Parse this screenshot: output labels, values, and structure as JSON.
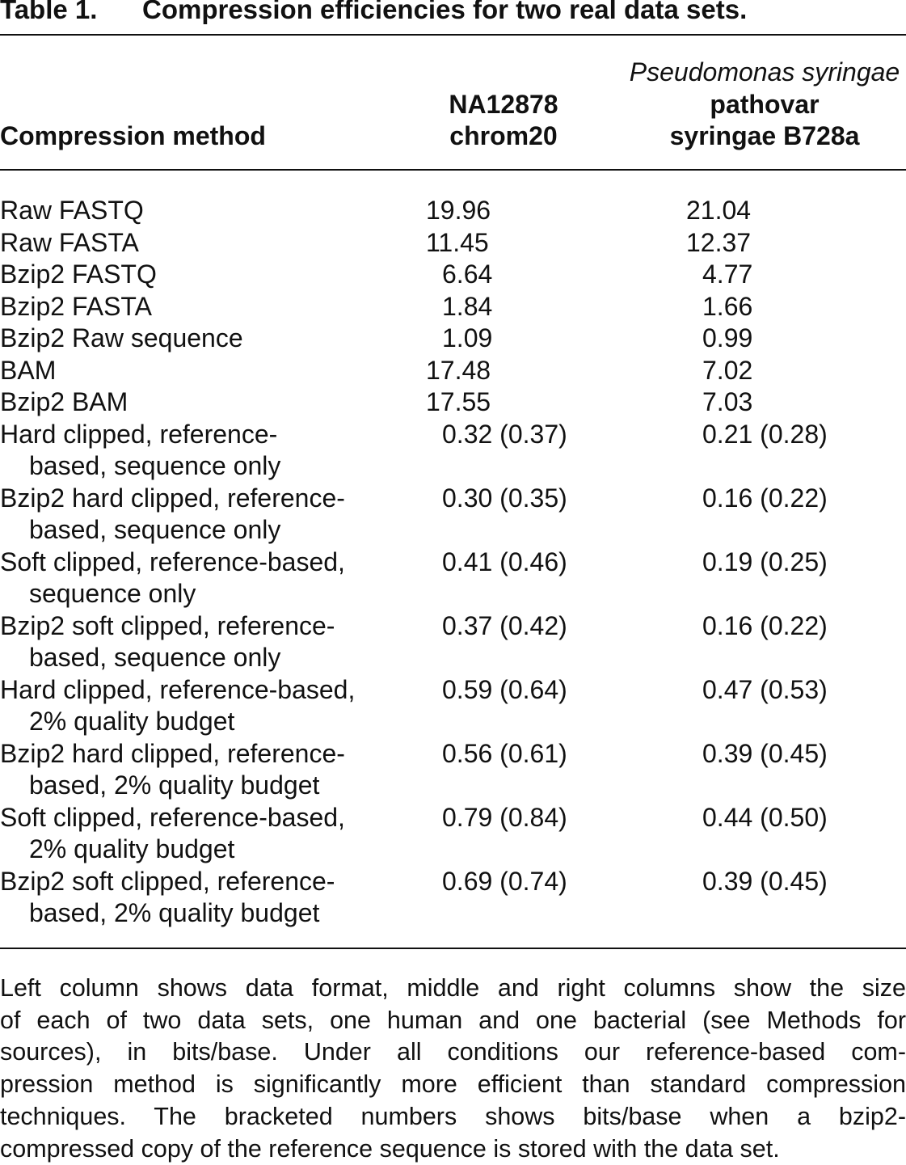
{
  "title": {
    "label": "Table 1.",
    "caption": "Compression efficiencies for two real data sets."
  },
  "table": {
    "header": {
      "method": [
        "Compression method"
      ],
      "col1": [
        "NA12878",
        "chrom20"
      ],
      "col2": [
        "Pseudomonas syringae",
        "pathovar",
        "syringae B728a"
      ]
    },
    "rows": [
      {
        "method": [
          "Raw FASTQ"
        ],
        "col1": "19.96",
        "col2": "21.04"
      },
      {
        "method": [
          "Raw FASTA"
        ],
        "col1": "11.45",
        "col2": "12.37"
      },
      {
        "method": [
          "Bzip2 FASTQ"
        ],
        "col1": "6.64",
        "col2": "4.77"
      },
      {
        "method": [
          "Bzip2 FASTA"
        ],
        "col1": "1.84",
        "col2": "1.66"
      },
      {
        "method": [
          "Bzip2 Raw sequence"
        ],
        "col1": "1.09",
        "col2": "0.99"
      },
      {
        "method": [
          "BAM"
        ],
        "col1": "17.48",
        "col2": "7.02"
      },
      {
        "method": [
          "Bzip2 BAM"
        ],
        "col1": "17.55",
        "col2": "7.03"
      },
      {
        "method": [
          "Hard clipped, reference-",
          "based, sequence only"
        ],
        "col1": "0.32 (0.37)",
        "col2": "0.21 (0.28)"
      },
      {
        "method": [
          "Bzip2 hard clipped, reference-",
          "based, sequence only"
        ],
        "col1": "0.30 (0.35)",
        "col2": "0.16 (0.22)"
      },
      {
        "method": [
          "Soft clipped, reference-based,",
          "sequence only"
        ],
        "col1": "0.41 (0.46)",
        "col2": "0.19 (0.25)"
      },
      {
        "method": [
          "Bzip2 soft clipped, reference-",
          "based, sequence only"
        ],
        "col1": "0.37 (0.42)",
        "col2": "0.16 (0.22)"
      },
      {
        "method": [
          "Hard clipped, reference-based,",
          "2% quality budget"
        ],
        "col1": "0.59 (0.64)",
        "col2": "0.47 (0.53)"
      },
      {
        "method": [
          "Bzip2 hard clipped, reference-",
          "based, 2% quality budget"
        ],
        "col1": "0.56 (0.61)",
        "col2": "0.39 (0.45)"
      },
      {
        "method": [
          "Soft clipped, reference-based,",
          "2% quality budget"
        ],
        "col1": "0.79 (0.84)",
        "col2": "0.44 (0.50)"
      },
      {
        "method": [
          "Bzip2 soft clipped, reference-",
          "based, 2% quality budget"
        ],
        "col1": "0.69 (0.74)",
        "col2": "0.39 (0.45)"
      }
    ]
  },
  "footnote": [
    "Left column shows data format, middle and right columns show the size",
    "of each of two data sets, one human and one bacterial (see Methods for",
    "sources), in bits/base. Under all conditions our reference-based com-",
    "pression method is significantly more efficient than standard compression",
    "techniques. The bracketed numbers shows bits/base when a bzip2-",
    "compressed copy of the reference sequence is stored with the data set."
  ]
}
